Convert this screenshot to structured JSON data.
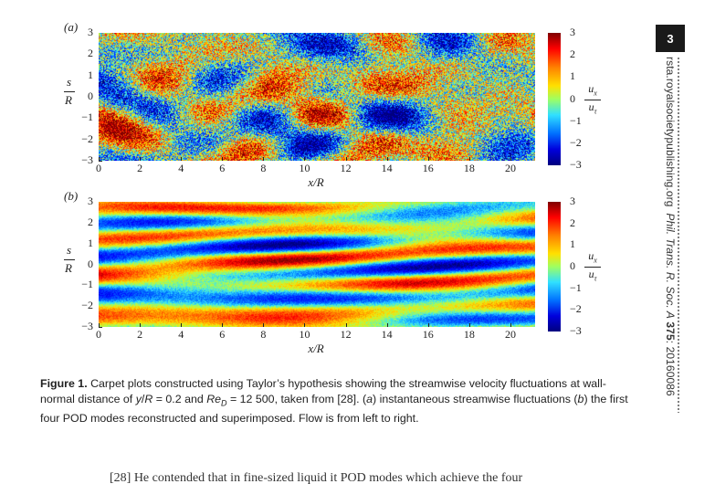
{
  "page_number": "3",
  "journal_side": {
    "site": "rsta.royalsocietypublishing.org",
    "journal": "Phil. Trans. R. Soc. A",
    "volume": "375",
    "article": ": 20160086"
  },
  "figure": {
    "panel_a": {
      "letter": "(a)"
    },
    "panel_b": {
      "letter": "(b)"
    },
    "ylabel_num": "s",
    "ylabel_den": "R",
    "yticks": [
      "3",
      "2",
      "1",
      "0",
      "−1",
      "−2",
      "−3"
    ],
    "xticks": [
      "0",
      "2",
      "4",
      "6",
      "8",
      "10",
      "12",
      "14",
      "16",
      "18",
      "20"
    ],
    "xlabel": "x/R",
    "colorbar_ticks": [
      "3",
      "2",
      "1",
      "0",
      "−1",
      "−2",
      "−3"
    ],
    "colorbar_unit_num": "u",
    "colorbar_unit_num_sub": "x",
    "colorbar_unit_den": "u",
    "colorbar_unit_den_sub": "τ",
    "colors": {
      "dark_red": "#7f0000",
      "red": "#ff0000",
      "orange": "#ff8000",
      "yellow": "#ffe000",
      "green": "#9fff60",
      "cyan": "#30e0ff",
      "blue": "#0070ff",
      "dark_blue": "#00007f"
    }
  },
  "caption": {
    "label": "Figure 1.",
    "text_1": " Carpet plots constructed using Taylor’s hypothesis showing the streamwise velocity fluctuations at wall-normal distance of ",
    "text_y": "y",
    "text_2": "/",
    "text_R": "R",
    "text_3": " = 0.2 and ",
    "text_Re": "Re",
    "text_D": "D",
    "text_4": " = 12 500, taken from [28]. (",
    "text_a": "a",
    "text_5": ") instantaneous streamwise fluctuations (",
    "text_b": "b",
    "text_6": ") the first four POD modes reconstructed and superimposed. Flow is from left to right."
  },
  "bottom_text": "[28]  He contended that in fine-sized liquid it POD modes which achieve the four"
}
